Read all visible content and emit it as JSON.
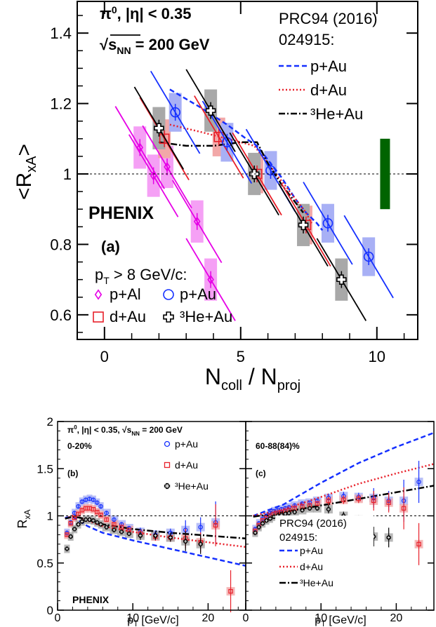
{
  "colors": {
    "p_al": "#e600e6",
    "d_au": "#e8202a",
    "p_au": "#1530ff",
    "he_au": "#000000",
    "syst": "#006400",
    "box_p_al": "#f5a0f5",
    "box_d_au": "#f2a8a8",
    "box_p_au": "#a8b0f5",
    "box_he_au": "#a8a8a8"
  },
  "chart_data": [
    {
      "panel": "a",
      "type": "scatter",
      "title_line1": "π⁰, |η| < 0.35",
      "title_line2": "√s_NN = 200 GeV",
      "t_pi": "π",
      "t_0": "0",
      "t_eta": ", |η| < 0.35",
      "t_s": "s",
      "t_nn": "NN",
      "t_energy": " = 200 GeV",
      "experiment": "PHENIX",
      "panel_label": "(a)",
      "cut_p": "p",
      "cut_t": "T",
      "cut_rest": " > 8 GeV/c:",
      "xlabel": "N_coll / N_proj",
      "xl_n1": "N",
      "xl_coll": "coll",
      "xl_slash": " / N",
      "xl_proj": "proj",
      "ylabel": "<R_xA>",
      "yl_open": "<R",
      "yl_xa": "xA",
      "yl_close": ">",
      "xlim": [
        -1.0,
        11.5
      ],
      "ylim": [
        0.53,
        1.49
      ],
      "xticks": [
        0,
        5,
        10
      ],
      "xtick_labels": [
        "0",
        "5",
        "10"
      ],
      "yticks": [
        0.6,
        0.8,
        1.0,
        1.2,
        1.4
      ],
      "ytick_labels": [
        "0.6",
        "0.8",
        "1",
        "1.2",
        "1.4"
      ],
      "ref_line": 1.0,
      "global_syst": {
        "x": 10.3,
        "ylow": 0.9,
        "yhigh": 1.1
      },
      "ref_title_line1": "PRC94 (2016)",
      "ref_title_line2": "024915:",
      "curves": [
        {
          "name": "p+Au",
          "x": [
            2.4,
            3.5,
            4.5,
            5.2,
            5.6,
            6.0,
            6.5,
            7.0,
            7.4,
            7.8,
            8.0
          ],
          "y": [
            1.24,
            1.19,
            1.14,
            1.1,
            1.08,
            1.04,
            0.99,
            0.93,
            0.89,
            0.86,
            0.84
          ]
        },
        {
          "name": "d+Au",
          "x": [
            2.4,
            3.5,
            4.5,
            5.0,
            5.5,
            6.0,
            6.5,
            7.0,
            7.4,
            7.6
          ],
          "y": [
            1.14,
            1.12,
            1.1,
            1.09,
            1.08,
            1.03,
            0.98,
            0.93,
            0.89,
            0.86
          ]
        },
        {
          "name": "³He+Au",
          "x": [
            2.0,
            3.0,
            4.0,
            5.0,
            5.6,
            6.0,
            6.5,
            7.0,
            7.3
          ],
          "y": [
            1.09,
            1.08,
            1.08,
            1.09,
            1.09,
            1.03,
            0.97,
            0.92,
            0.89
          ]
        }
      ],
      "legend": [
        {
          "label": "p+Al",
          "marker": "diamond"
        },
        {
          "label": "p+Au",
          "marker": "circle"
        },
        {
          "label": "d+Au",
          "marker": "square"
        },
        {
          "label": "³He+Au",
          "marker": "cross"
        }
      ],
      "series": [
        {
          "name": "p+Al",
          "x": [
            1.3,
            1.8,
            2.3,
            3.4,
            3.9
          ],
          "y": [
            1.075,
            0.995,
            1.02,
            0.865,
            0.7
          ],
          "box": 0.12
        },
        {
          "name": "d+Au",
          "x": [
            2.2,
            4.2,
            5.6,
            7.4
          ],
          "y": [
            1.1,
            1.105,
            1.0,
            0.855
          ],
          "box": 0.11
        },
        {
          "name": "p+Au",
          "x": [
            2.6,
            4.5,
            6.1,
            8.2,
            9.7
          ],
          "y": [
            1.175,
            1.09,
            1.01,
            0.86,
            0.765
          ],
          "box": 0.11
        },
        {
          "name": "³He+Au",
          "x": [
            2.0,
            3.9,
            5.5,
            7.3,
            8.7
          ],
          "y": [
            1.13,
            1.18,
            1.0,
            0.855,
            0.7
          ],
          "box": 0.12
        }
      ]
    },
    {
      "panel": "b",
      "type": "scatter",
      "header": "π⁰, |η| < 0.35, √s_NN = 200 GeV",
      "centrality": "0-20%",
      "panel_label": "(b)",
      "experiment": "PHENIX",
      "xlabel": "p_T [GeV/c]",
      "ylabel": "R_xA",
      "xlim": [
        0,
        25
      ],
      "ylim": [
        0,
        2
      ],
      "xticks": [
        10,
        20
      ],
      "xtick_labels": [
        "10",
        "20"
      ],
      "yticks": [
        0,
        0.5,
        1,
        1.5,
        2
      ],
      "ytick_labels": [
        "0",
        "0.5",
        "1",
        "1.5",
        "2"
      ],
      "ref_line": 1.0,
      "series": [
        {
          "name": "p+Au",
          "x": [
            1.25,
            1.75,
            2.25,
            2.75,
            3.25,
            3.75,
            4.25,
            4.75,
            5.25,
            5.75,
            6.5,
            7.5,
            8.5,
            9.5,
            11,
            13,
            15,
            17,
            19,
            21
          ],
          "y": [
            0.82,
            0.93,
            1.03,
            1.1,
            1.15,
            1.17,
            1.18,
            1.17,
            1.14,
            1.1,
            1.03,
            0.96,
            0.91,
            0.87,
            0.83,
            0.8,
            0.82,
            0.85,
            0.88,
            0.93
          ]
        },
        {
          "name": "d+Au",
          "x": [
            1.25,
            1.75,
            2.25,
            2.75,
            3.25,
            3.75,
            4.25,
            4.75,
            5.25,
            5.75,
            6.5,
            7.5,
            8.5,
            9.5,
            11,
            13,
            15,
            17,
            19,
            21,
            23
          ],
          "y": [
            0.8,
            0.92,
            0.98,
            1.02,
            1.06,
            1.08,
            1.08,
            1.07,
            1.04,
            1.01,
            0.96,
            0.91,
            0.88,
            0.85,
            0.81,
            0.78,
            0.77,
            0.76,
            0.72,
            0.9,
            0.2
          ]
        },
        {
          "name": "³He+Au",
          "x": [
            1.25,
            1.75,
            2.25,
            2.75,
            3.25,
            3.75,
            4.25,
            4.75,
            5.25,
            5.75,
            6.5,
            7.5,
            8.5,
            9.5,
            11,
            13,
            15,
            17,
            19
          ],
          "y": [
            0.65,
            0.78,
            0.86,
            0.91,
            0.94,
            0.96,
            0.96,
            0.95,
            0.93,
            0.91,
            0.88,
            0.85,
            0.83,
            0.81,
            0.79,
            0.79,
            0.77,
            0.73,
            0.7
          ]
        }
      ],
      "curves": [
        {
          "name": "p+Au",
          "x": [
            1,
            2,
            3,
            4,
            6,
            10,
            15,
            20,
            25
          ],
          "y": [
            0.98,
            0.99,
            0.94,
            0.89,
            0.82,
            0.74,
            0.65,
            0.56,
            0.47
          ]
        },
        {
          "name": "d+Au",
          "x": [
            1,
            2,
            3,
            4,
            6,
            10,
            15,
            20,
            25
          ],
          "y": [
            0.97,
            1.0,
            0.98,
            0.95,
            0.89,
            0.83,
            0.77,
            0.72,
            0.67
          ]
        },
        {
          "name": "³He+Au",
          "x": [
            1,
            2,
            3,
            4,
            6,
            10,
            15,
            20,
            25
          ],
          "y": [
            0.97,
            0.99,
            0.98,
            0.96,
            0.91,
            0.86,
            0.82,
            0.79,
            0.76
          ]
        }
      ],
      "legend": [
        {
          "label": "p+Au",
          "marker": "circle"
        },
        {
          "label": "d+Au",
          "marker": "square"
        },
        {
          "label": "³He+Au",
          "marker": "cross"
        }
      ]
    },
    {
      "panel": "c",
      "type": "scatter",
      "centrality": "60-88(84)%",
      "panel_label": "(c)",
      "xlabel": "p_T [GeV/c]",
      "xlim": [
        0,
        25
      ],
      "ylim": [
        0,
        2
      ],
      "xticks": [
        10,
        20
      ],
      "xtick_labels": [
        "10",
        "20"
      ],
      "ref_line": 1.0,
      "ref_title_line1": "PRC94 (2016)",
      "ref_title_line2": "024915:",
      "series": [
        {
          "name": "p+Au",
          "x": [
            1.25,
            1.75,
            2.25,
            2.75,
            3.25,
            3.75,
            4.25,
            4.75,
            5.25,
            5.75,
            6.5,
            7.5,
            8.5,
            9.5,
            11,
            13,
            15,
            17,
            19,
            21,
            23
          ],
          "y": [
            0.86,
            0.92,
            0.97,
            1.0,
            1.03,
            1.05,
            1.06,
            1.07,
            1.08,
            1.09,
            1.11,
            1.13,
            1.14,
            1.16,
            1.19,
            1.21,
            1.2,
            1.19,
            1.16,
            1.16,
            1.36
          ]
        },
        {
          "name": "d+Au",
          "x": [
            1.25,
            1.75,
            2.25,
            2.75,
            3.25,
            3.75,
            4.25,
            4.75,
            5.25,
            5.75,
            6.5,
            7.5,
            8.5,
            9.5,
            11,
            13,
            15,
            17,
            19,
            21,
            23
          ],
          "y": [
            0.84,
            0.9,
            0.95,
            0.98,
            1.0,
            1.02,
            1.03,
            1.04,
            1.05,
            1.06,
            1.08,
            1.1,
            1.11,
            1.13,
            1.16,
            1.17,
            1.18,
            1.16,
            1.14,
            1.08,
            0.7
          ]
        },
        {
          "name": "³He+Au",
          "x": [
            1.25,
            1.75,
            2.25,
            2.75,
            3.25,
            3.75,
            4.25,
            4.75,
            5.25,
            5.75,
            6.5,
            7.5,
            8.5,
            9.5,
            11,
            13,
            15,
            17,
            19
          ],
          "y": [
            0.82,
            0.88,
            0.92,
            0.95,
            0.97,
            0.99,
            1.0,
            1.01,
            1.02,
            1.03,
            1.04,
            1.06,
            1.08,
            1.08,
            1.07,
            1.0,
            0.96,
            0.78,
            0.77
          ]
        }
      ],
      "curves": [
        {
          "name": "p+Au",
          "x": [
            1,
            5,
            10,
            15,
            20,
            25
          ],
          "y": [
            1.0,
            1.12,
            1.35,
            1.56,
            1.73,
            1.88
          ]
        },
        {
          "name": "d+Au",
          "x": [
            1,
            5,
            10,
            15,
            20,
            25
          ],
          "y": [
            1.0,
            1.07,
            1.2,
            1.34,
            1.45,
            1.55
          ]
        },
        {
          "name": "³He+Au",
          "x": [
            1,
            5,
            10,
            15,
            20,
            25
          ],
          "y": [
            0.99,
            1.04,
            1.11,
            1.18,
            1.25,
            1.32
          ]
        }
      ],
      "legend": [
        {
          "label": "p+Au",
          "style": "dashed"
        },
        {
          "label": "d+Au",
          "style": "dotted"
        },
        {
          "label": "³He+Au",
          "style": "dashdot"
        }
      ]
    }
  ]
}
